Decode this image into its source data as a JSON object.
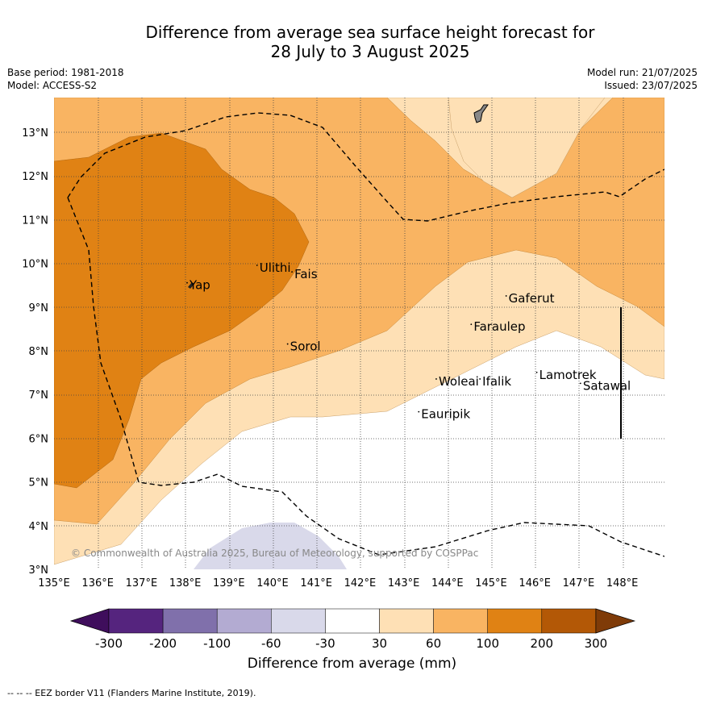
{
  "title": {
    "line1": "Difference from average sea surface height forecast for",
    "line2": "28 July to 3 August 2025"
  },
  "meta": {
    "base_period": "Base period: 1981-2018",
    "model": "Model: ACCESS-S2",
    "model_run": "Model run: 21/07/2025",
    "issued": "Issued: 23/07/2025"
  },
  "map": {
    "lon_ticks": [
      "135°E",
      "136°E",
      "137°E",
      "138°E",
      "139°E",
      "140°E",
      "141°E",
      "142°E",
      "143°E",
      "144°E",
      "145°E",
      "146°E",
      "147°E",
      "148°E"
    ],
    "lat_ticks": [
      "3°N",
      "4°N",
      "5°N",
      "6°N",
      "7°N",
      "8°N",
      "9°N",
      "10°N",
      "11°N",
      "12°N",
      "13°N"
    ],
    "places": [
      {
        "name": "Yap",
        "lon": 138.1,
        "lat": 9.5
      },
      {
        "name": "Ulithi",
        "lon": 139.7,
        "lat": 9.9
      },
      {
        "name": "Fais",
        "lon": 140.5,
        "lat": 9.75
      },
      {
        "name": "Sorol",
        "lon": 140.4,
        "lat": 8.1
      },
      {
        "name": "Gaferut",
        "lon": 145.4,
        "lat": 9.2
      },
      {
        "name": "Faraulep",
        "lon": 144.6,
        "lat": 8.55
      },
      {
        "name": "Woleai",
        "lon": 143.8,
        "lat": 7.3
      },
      {
        "name": "Ifalik",
        "lon": 144.8,
        "lat": 7.3
      },
      {
        "name": "Lamotrek",
        "lon": 146.1,
        "lat": 7.45
      },
      {
        "name": "Satawal",
        "lon": 147.1,
        "lat": 7.2
      },
      {
        "name": "Eauripik",
        "lon": 143.4,
        "lat": 6.55
      }
    ],
    "copyright": "© Commonwealth of Australia 2025, Bureau of Meteorology, supported by COSPPac"
  },
  "colorbar": {
    "ticks": [
      "-300",
      "-200",
      "-100",
      "-60",
      "-30",
      "30",
      "60",
      "100",
      "200",
      "300"
    ],
    "colors": [
      "#3f0e5c",
      "#55247e",
      "#8070ab",
      "#b3abd2",
      "#d9d9ea",
      "#ffffff",
      "#fee0b5",
      "#f9b462",
      "#e08214",
      "#b35806",
      "#7f3b08"
    ],
    "label": "Difference from average (mm)"
  },
  "footer": "--  --  -- EEZ border V11 (Flanders Marine Institute, 2019)."
}
